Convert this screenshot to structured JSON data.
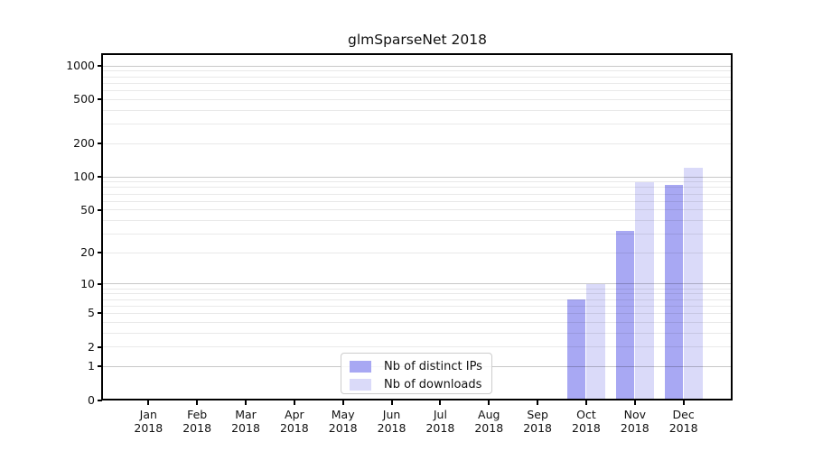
{
  "title": "glmSparseNet 2018",
  "legend": {
    "items": [
      {
        "label": "Nb of distinct IPs",
        "color": "#a8a8f3"
      },
      {
        "label": "Nb of downloads",
        "color": "#dadaf9"
      }
    ]
  },
  "y_axis": {
    "tick_values": [
      0,
      1,
      2,
      5,
      10,
      20,
      50,
      100,
      200,
      500,
      1000
    ]
  },
  "x_axis": {
    "months": [
      "Jan",
      "Feb",
      "Mar",
      "Apr",
      "May",
      "Jun",
      "Jul",
      "Aug",
      "Sep",
      "Oct",
      "Nov",
      "Dec"
    ],
    "year": "2018"
  },
  "chart_data": {
    "type": "bar",
    "title": "glmSparseNet 2018",
    "categories": [
      "Jan 2018",
      "Feb 2018",
      "Mar 2018",
      "Apr 2018",
      "May 2018",
      "Jun 2018",
      "Jul 2018",
      "Aug 2018",
      "Sep 2018",
      "Oct 2018",
      "Nov 2018",
      "Dec 2018"
    ],
    "series": [
      {
        "name": "Nb of distinct IPs",
        "color": "#a8a8f3",
        "values": [
          0,
          0,
          0,
          0,
          0,
          0,
          0,
          0,
          0,
          7,
          32,
          85
        ]
      },
      {
        "name": "Nb of downloads",
        "color": "#dadaf9",
        "values": [
          0,
          0,
          0,
          0,
          0,
          0,
          0,
          0,
          0,
          10,
          90,
          122
        ]
      }
    ],
    "yscale": "log1p",
    "y_ticks": [
      0,
      1,
      2,
      5,
      10,
      20,
      50,
      100,
      200,
      500,
      1000
    ],
    "ylim": [
      0,
      1280
    ],
    "grid": "horizontal, major at powers of 10, minor at 2-9 per decade",
    "legend_position": "inside lower-center"
  }
}
